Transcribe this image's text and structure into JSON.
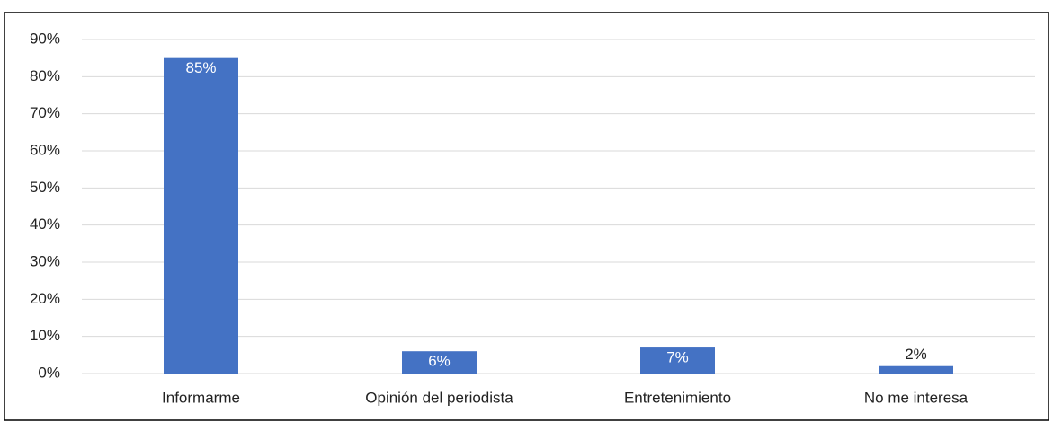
{
  "chart_data": {
    "type": "bar",
    "categories": [
      "Informarme",
      "Opinión del periodista",
      "Entretenimiento",
      "No me interesa"
    ],
    "values": [
      85,
      6,
      7,
      2
    ],
    "value_labels": [
      "85%",
      "6%",
      "7%",
      "2%"
    ],
    "color": "#4472c4",
    "ylim": [
      0,
      90
    ],
    "yticks": [
      {
        "value": 0,
        "label": "0%"
      },
      {
        "value": 10,
        "label": "10%"
      },
      {
        "value": 20,
        "label": "20%"
      },
      {
        "value": 30,
        "label": "30%"
      },
      {
        "value": 40,
        "label": "40%"
      },
      {
        "value": 50,
        "label": "50%"
      },
      {
        "value": 60,
        "label": "60%"
      },
      {
        "value": 70,
        "label": "70%"
      },
      {
        "value": 80,
        "label": "80%"
      },
      {
        "value": 90,
        "label": "90%"
      }
    ],
    "grid": true
  }
}
